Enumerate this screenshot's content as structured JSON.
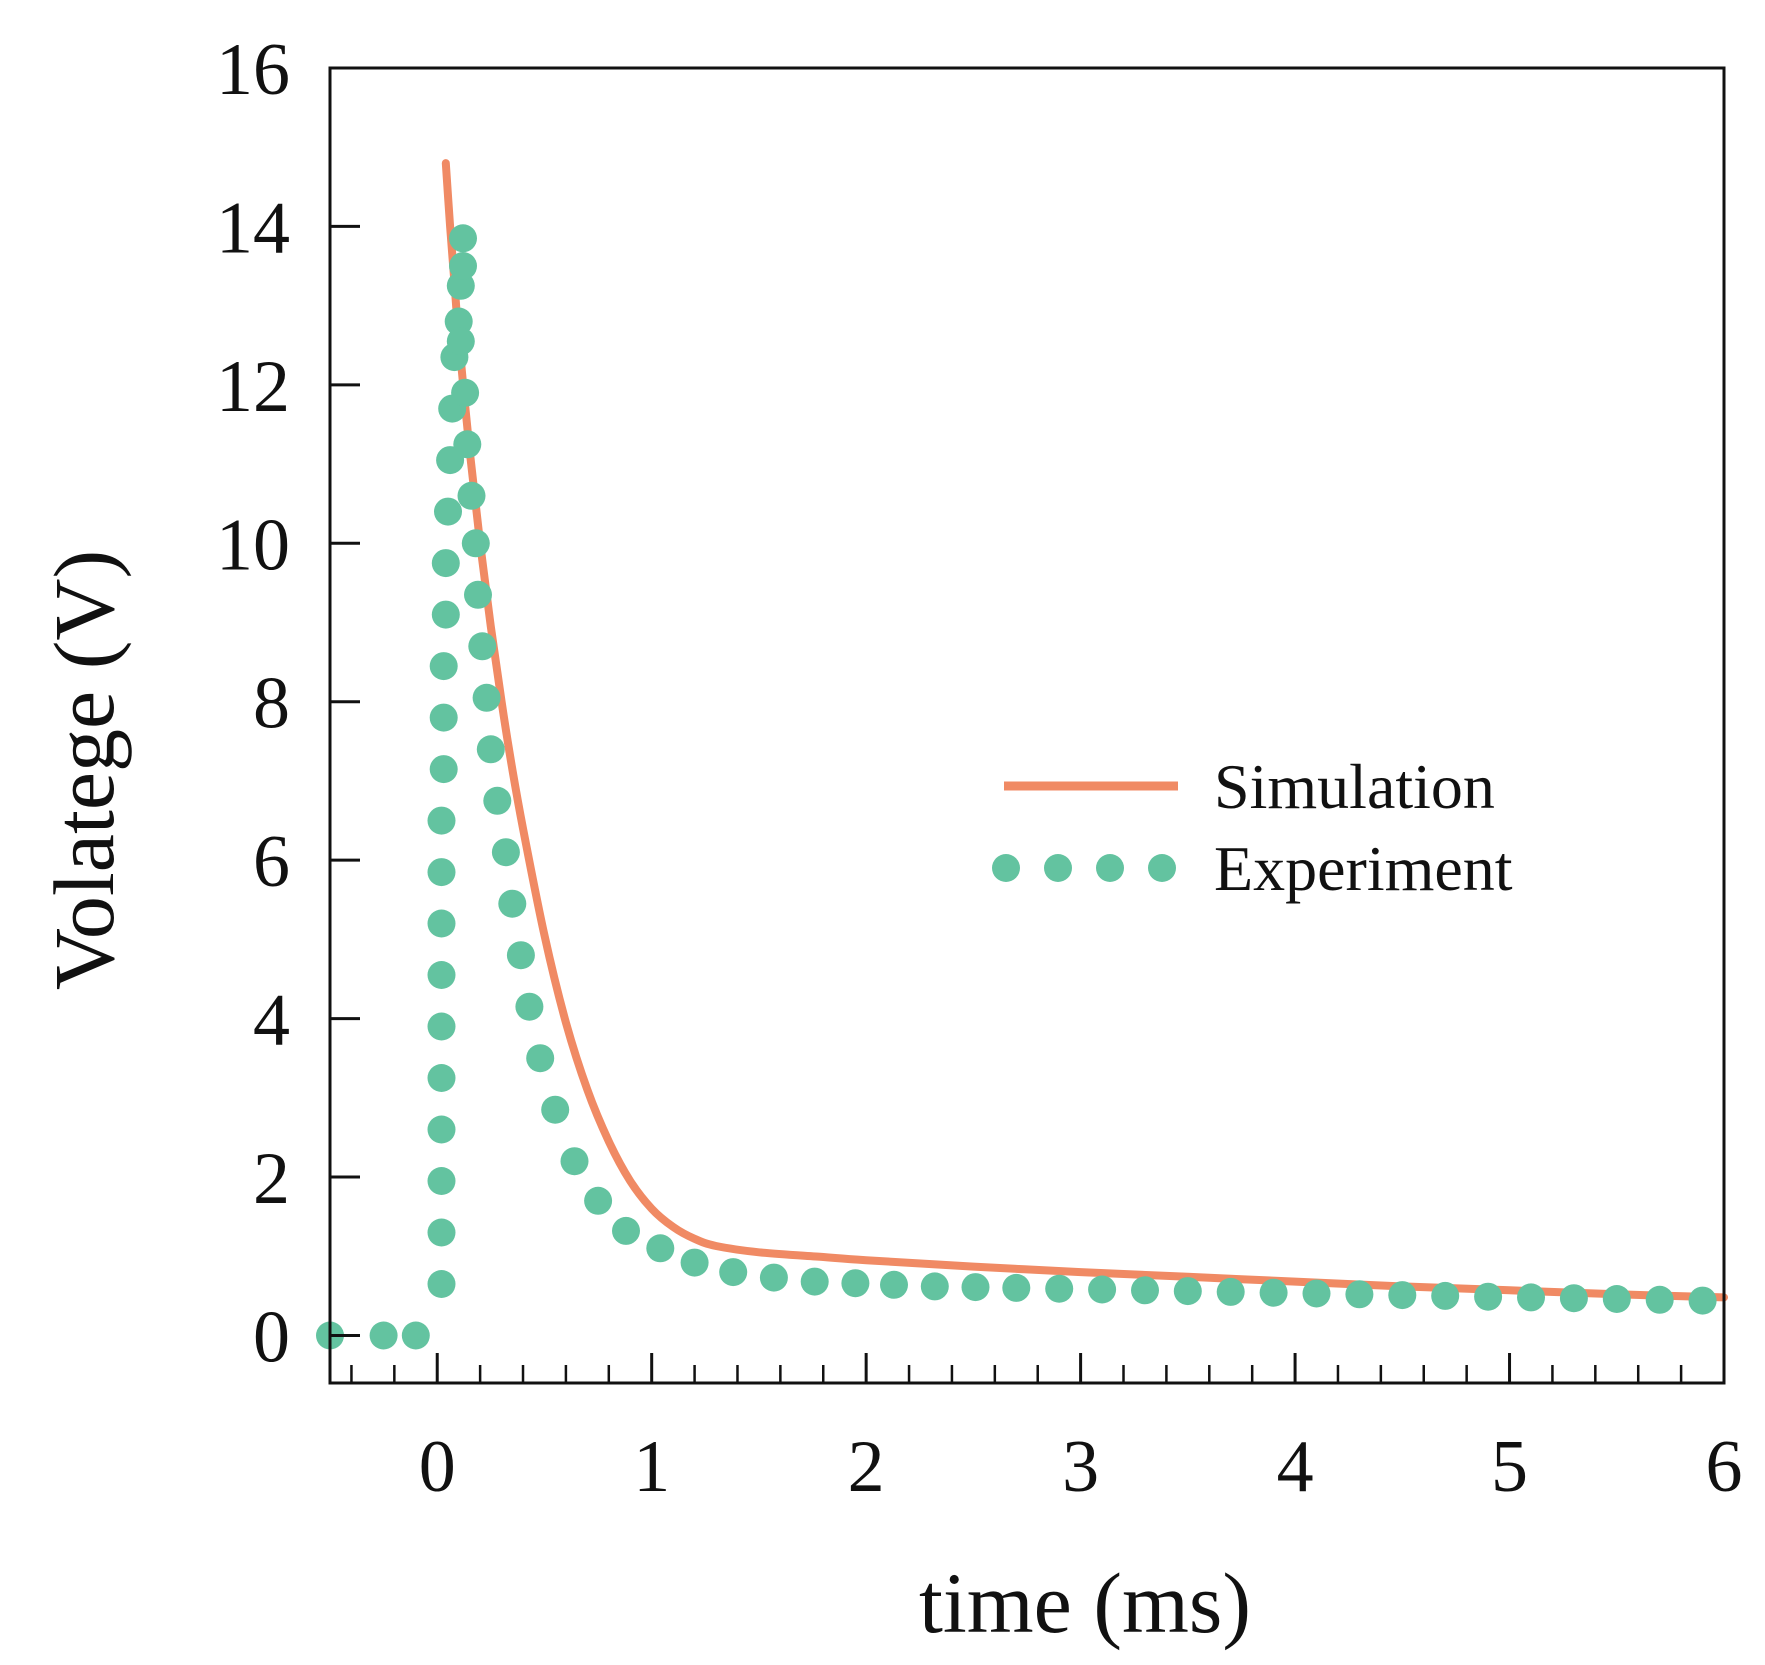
{
  "chart_data": {
    "type": "line",
    "title": "",
    "xlabel": "time (ms)",
    "ylabel": "Volatege (V)",
    "xlim": [
      -0.5,
      6
    ],
    "ylim": [
      -0.6,
      16
    ],
    "xticks": [
      0,
      1,
      2,
      3,
      4,
      5,
      6
    ],
    "xtick_labels": [
      "0",
      "1",
      "2",
      "3",
      "4",
      "5",
      "6"
    ],
    "xminor_step": 0.2,
    "yticks": [
      0,
      2,
      4,
      6,
      8,
      10,
      12,
      14,
      16
    ],
    "ytick_labels": [
      "0",
      "2",
      "4",
      "6",
      "8",
      "10",
      "12",
      "14",
      "16"
    ],
    "grid": false,
    "legend_position": "center-right",
    "colors": {
      "simulation": "#F08A64",
      "experiment": "#63C3A0",
      "axis": "#111111"
    },
    "series": [
      {
        "name": "Simulation",
        "style": "solid-line",
        "x": [
          0.04,
          0.06,
          0.08,
          0.1,
          0.15,
          0.2,
          0.25,
          0.3,
          0.35,
          0.4,
          0.5,
          0.6,
          0.7,
          0.8,
          0.9,
          1.0,
          1.1,
          1.2,
          1.3,
          1.5,
          1.8,
          2.0,
          2.5,
          3.0,
          3.5,
          4.0,
          4.5,
          5.0,
          5.5,
          6.0
        ],
        "y": [
          14.8,
          14.0,
          13.3,
          12.6,
          11.2,
          10.0,
          8.95,
          8.0,
          7.15,
          6.4,
          5.05,
          3.95,
          3.1,
          2.45,
          1.95,
          1.6,
          1.37,
          1.22,
          1.13,
          1.05,
          0.99,
          0.95,
          0.87,
          0.8,
          0.74,
          0.68,
          0.62,
          0.57,
          0.52,
          0.48
        ]
      },
      {
        "name": "Experiment",
        "style": "dots",
        "x": [
          -0.5,
          -0.25,
          -0.1,
          0.02,
          0.02,
          0.02,
          0.02,
          0.02,
          0.02,
          0.02,
          0.02,
          0.02,
          0.02,
          0.03,
          0.03,
          0.03,
          0.04,
          0.04,
          0.05,
          0.06,
          0.07,
          0.08,
          0.1,
          0.11,
          0.12,
          0.12,
          0.11,
          0.13,
          0.14,
          0.16,
          0.18,
          0.19,
          0.21,
          0.23,
          0.25,
          0.28,
          0.32,
          0.35,
          0.39,
          0.43,
          0.48,
          0.55,
          0.64,
          0.75,
          0.88,
          1.04,
          1.2,
          1.38,
          1.57,
          1.76,
          1.95,
          2.13,
          2.32,
          2.51,
          2.7,
          2.9,
          3.1,
          3.3,
          3.5,
          3.7,
          3.9,
          4.1,
          4.3,
          4.5,
          4.7,
          4.9,
          5.1,
          5.3,
          5.5,
          5.7,
          5.9
        ],
        "y": [
          0,
          0,
          0,
          0.65,
          1.3,
          1.95,
          2.6,
          3.25,
          3.9,
          4.55,
          5.2,
          5.85,
          6.5,
          7.15,
          7.8,
          8.45,
          9.1,
          9.75,
          10.4,
          11.05,
          11.7,
          12.35,
          12.8,
          13.25,
          13.5,
          13.85,
          12.55,
          11.9,
          11.25,
          10.6,
          10.0,
          9.35,
          8.7,
          8.05,
          7.4,
          6.75,
          6.1,
          5.45,
          4.8,
          4.15,
          3.5,
          2.85,
          2.2,
          1.7,
          1.32,
          1.1,
          0.92,
          0.8,
          0.73,
          0.68,
          0.66,
          0.64,
          0.62,
          0.61,
          0.6,
          0.59,
          0.58,
          0.57,
          0.56,
          0.55,
          0.54,
          0.53,
          0.52,
          0.51,
          0.5,
          0.49,
          0.48,
          0.47,
          0.46,
          0.45,
          0.44
        ]
      }
    ]
  }
}
